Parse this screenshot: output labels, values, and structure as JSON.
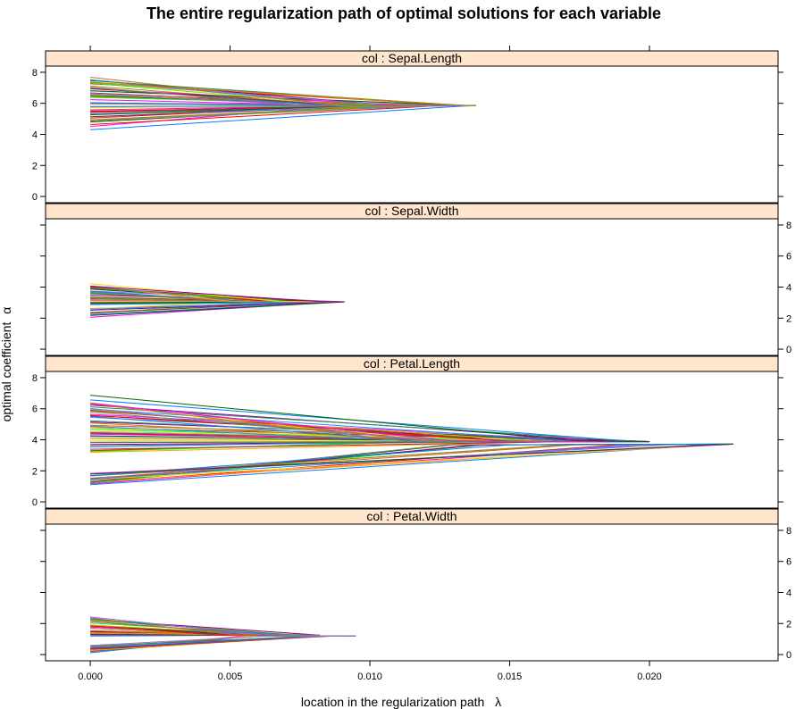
{
  "chart_data": {
    "type": "line",
    "title": "The entire regularization path of optimal solutions for each variable",
    "xlabel": "location in the regularization path",
    "xlabel_symbol": "λ",
    "ylabel": "optimal coefficient",
    "ylabel_symbol": "α",
    "xlim": [
      -0.0016,
      0.0246
    ],
    "ylim": [
      -0.4,
      8.4
    ],
    "x_ticks": [
      0.0,
      0.005,
      0.01,
      0.015,
      0.02
    ],
    "x_tick_labels": [
      "0.000",
      "0.005",
      "0.010",
      "0.015",
      "0.020"
    ],
    "y_ticks": [
      0,
      2,
      4,
      6,
      8
    ],
    "y_tick_labels": [
      "0",
      "2",
      "4",
      "6",
      "8"
    ],
    "grid": false,
    "strip_fill": "#ffe5cc",
    "palette": [
      "#0080ff",
      "#ff00ff",
      "#006400",
      "#ff0000",
      "#ffa500",
      "#00ff00",
      "#a52a2a",
      "#808080",
      "#ffd700",
      "#8b008b",
      "#1e90ff",
      "#d2691e",
      "#2e8b57",
      "#9370db",
      "#b8860b"
    ],
    "panels": [
      {
        "strip": "col : Sepal.Length",
        "y_axis_side": "left",
        "converge_lambda": 0.0138,
        "converge_value": 5.85,
        "start_min": 4.3,
        "start_max": 7.9,
        "groups": [],
        "n_paths": 60
      },
      {
        "strip": "col : Sepal.Width",
        "y_axis_side": "right",
        "converge_lambda": 0.0091,
        "converge_value": 3.05,
        "start_min": 2.0,
        "start_max": 4.4,
        "groups": [],
        "n_paths": 40
      },
      {
        "strip": "col : Petal.Length",
        "y_axis_side": "left",
        "converge_lambda": 0.023,
        "converge_value": 3.75,
        "start_min": 1.0,
        "start_max": 6.9,
        "groups": [
          {
            "start_min": 1.0,
            "start_max": 1.9,
            "merge_lambda": 0.023,
            "merge_value": 3.72,
            "count": 18
          },
          {
            "start_min": 3.0,
            "start_max": 6.9,
            "merge_lambda": 0.02,
            "merge_value": 3.88,
            "count": 45
          }
        ],
        "n_paths": 63
      },
      {
        "strip": "col : Petal.Width",
        "y_axis_side": "right",
        "converge_lambda": 0.0095,
        "converge_value": 1.2,
        "start_min": 0.1,
        "start_max": 2.5,
        "groups": [
          {
            "start_min": 0.1,
            "start_max": 0.6,
            "merge_lambda": 0.0095,
            "merge_value": 1.2,
            "count": 14
          },
          {
            "start_min": 1.0,
            "start_max": 2.5,
            "merge_lambda": 0.0082,
            "merge_value": 1.25,
            "count": 30
          }
        ],
        "n_paths": 44
      }
    ]
  }
}
